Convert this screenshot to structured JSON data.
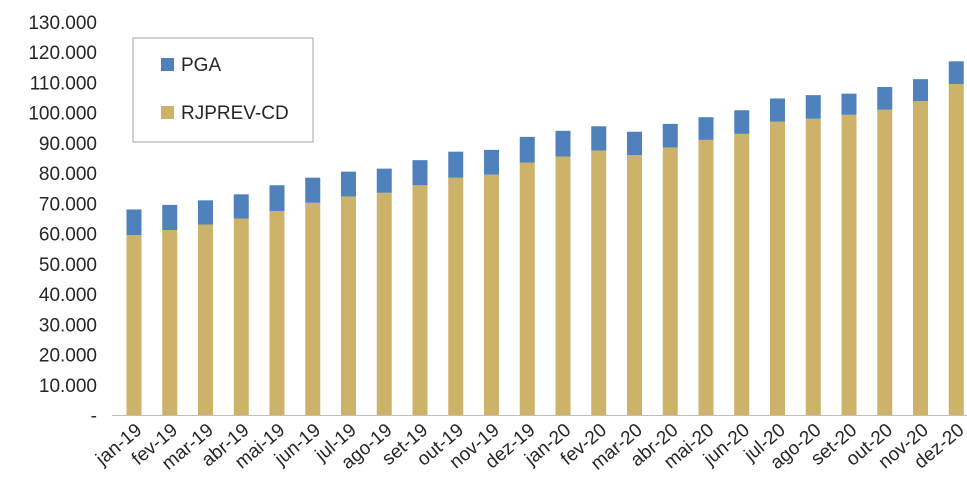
{
  "chart_data": {
    "type": "bar",
    "stacked": true,
    "title": "",
    "xlabel": "",
    "ylabel": "",
    "ylim": [
      0,
      130000
    ],
    "y_ticks": [
      0,
      10000,
      20000,
      30000,
      40000,
      50000,
      60000,
      70000,
      80000,
      90000,
      100000,
      110000,
      120000,
      130000
    ],
    "y_tick_labels": [
      "-",
      "10.000",
      "20.000",
      "30.000",
      "40.000",
      "50.000",
      "60.000",
      "70.000",
      "80.000",
      "90.000",
      "100.000",
      "110.000",
      "120.000",
      "130.000"
    ],
    "grid": false,
    "legend_position": "top-left",
    "categories": [
      "jan-19",
      "fev-19",
      "mar-19",
      "abr-19",
      "mai-19",
      "jun-19",
      "jul-19",
      "ago-19",
      "set-19",
      "out-19",
      "nov-19",
      "dez-19",
      "jan-20",
      "fev-20",
      "mar-20",
      "abr-20",
      "mai-20",
      "jun-20",
      "jul-20",
      "ago-20",
      "set-20",
      "out-20",
      "nov-20",
      "dez-20"
    ],
    "series": [
      {
        "name": "RJPREV-CD",
        "color": "#CDB26A",
        "values": [
          59500,
          61200,
          63000,
          65000,
          67500,
          70200,
          72300,
          73500,
          76000,
          78500,
          79500,
          83500,
          85500,
          87500,
          86000,
          88500,
          91000,
          93000,
          97000,
          98000,
          99300,
          101000,
          103800,
          109500
        ]
      },
      {
        "name": "PGA",
        "color": "#4F81BD",
        "values": [
          8500,
          8300,
          8000,
          8000,
          8500,
          8300,
          8200,
          8000,
          8300,
          8600,
          8200,
          8500,
          8500,
          8000,
          7700,
          7800,
          7500,
          7800,
          7700,
          7800,
          7000,
          7500,
          7300,
          7500
        ]
      }
    ]
  }
}
